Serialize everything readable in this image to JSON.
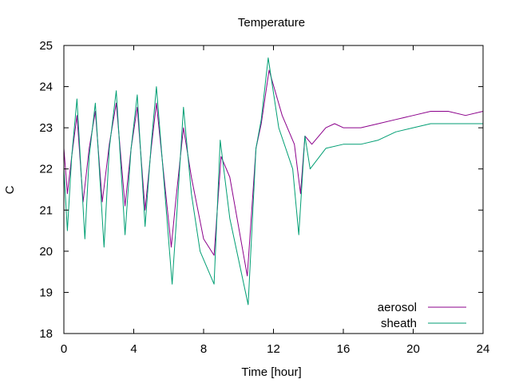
{
  "chart_data": {
    "type": "line",
    "title": "Temperature",
    "xlabel": "Time [hour]",
    "ylabel": "C",
    "xlim": [
      0,
      24
    ],
    "ylim": [
      18,
      25
    ],
    "x_ticks": [
      "0",
      "4",
      "8",
      "12",
      "16",
      "20",
      "24"
    ],
    "y_ticks": [
      "18",
      "19",
      "20",
      "21",
      "22",
      "23",
      "24",
      "25"
    ],
    "grid": false,
    "legend_position": "bottom-right",
    "colors": {
      "aerosol": "#8b008b",
      "sheath": "#009e73",
      "overlap": "#2b2bcf"
    },
    "series": [
      {
        "name": "aerosol",
        "points": [
          [
            0.0,
            22.5
          ],
          [
            0.2,
            21.4
          ],
          [
            0.45,
            22.3
          ],
          [
            0.75,
            23.3
          ],
          [
            1.1,
            21.2
          ],
          [
            1.45,
            22.5
          ],
          [
            1.8,
            23.4
          ],
          [
            2.2,
            21.2
          ],
          [
            2.6,
            22.6
          ],
          [
            3.0,
            23.6
          ],
          [
            3.5,
            21.1
          ],
          [
            3.85,
            22.5
          ],
          [
            4.2,
            23.5
          ],
          [
            4.65,
            21.0
          ],
          [
            5.0,
            22.5
          ],
          [
            5.3,
            23.6
          ],
          [
            6.15,
            20.1
          ],
          [
            6.4,
            21.2
          ],
          [
            6.85,
            23.0
          ],
          [
            7.3,
            21.8
          ],
          [
            8.0,
            20.3
          ],
          [
            8.6,
            19.9
          ],
          [
            9.0,
            22.3
          ],
          [
            9.5,
            21.8
          ],
          [
            10.5,
            19.4
          ],
          [
            11.0,
            22.5
          ],
          [
            11.3,
            23.1
          ],
          [
            11.75,
            24.4
          ],
          [
            12.5,
            23.3
          ],
          [
            13.2,
            22.6
          ],
          [
            13.55,
            21.4
          ],
          [
            13.8,
            22.8
          ],
          [
            14.2,
            22.6
          ],
          [
            15.0,
            23.0
          ],
          [
            15.5,
            23.1
          ],
          [
            16.0,
            23.0
          ],
          [
            17.0,
            23.0
          ],
          [
            18.0,
            23.1
          ],
          [
            19.0,
            23.2
          ],
          [
            20.0,
            23.3
          ],
          [
            21.0,
            23.4
          ],
          [
            22.0,
            23.4
          ],
          [
            23.0,
            23.3
          ],
          [
            24.0,
            23.4
          ]
        ]
      },
      {
        "name": "sheath",
        "points": [
          [
            0.0,
            22.0
          ],
          [
            0.2,
            20.5
          ],
          [
            0.45,
            22.3
          ],
          [
            0.75,
            23.7
          ],
          [
            1.2,
            20.3
          ],
          [
            1.45,
            22.3
          ],
          [
            1.8,
            23.6
          ],
          [
            2.3,
            20.1
          ],
          [
            2.6,
            22.5
          ],
          [
            3.0,
            23.9
          ],
          [
            3.5,
            20.4
          ],
          [
            3.85,
            22.5
          ],
          [
            4.2,
            23.8
          ],
          [
            4.65,
            20.6
          ],
          [
            5.0,
            22.6
          ],
          [
            5.3,
            24.0
          ],
          [
            6.2,
            19.2
          ],
          [
            6.45,
            20.8
          ],
          [
            6.85,
            23.5
          ],
          [
            7.3,
            21.4
          ],
          [
            7.8,
            20.0
          ],
          [
            8.6,
            19.2
          ],
          [
            8.95,
            22.7
          ],
          [
            9.5,
            20.8
          ],
          [
            10.55,
            18.7
          ],
          [
            11.0,
            22.5
          ],
          [
            11.3,
            23.2
          ],
          [
            11.7,
            24.7
          ],
          [
            12.3,
            23.0
          ],
          [
            13.1,
            22.0
          ],
          [
            13.45,
            20.4
          ],
          [
            13.8,
            22.8
          ],
          [
            14.1,
            22.0
          ],
          [
            15.0,
            22.5
          ],
          [
            16.0,
            22.6
          ],
          [
            17.0,
            22.6
          ],
          [
            18.0,
            22.7
          ],
          [
            19.0,
            22.9
          ],
          [
            20.0,
            23.0
          ],
          [
            21.0,
            23.1
          ],
          [
            22.0,
            23.1
          ],
          [
            23.0,
            23.1
          ],
          [
            24.0,
            23.1
          ]
        ]
      }
    ]
  }
}
